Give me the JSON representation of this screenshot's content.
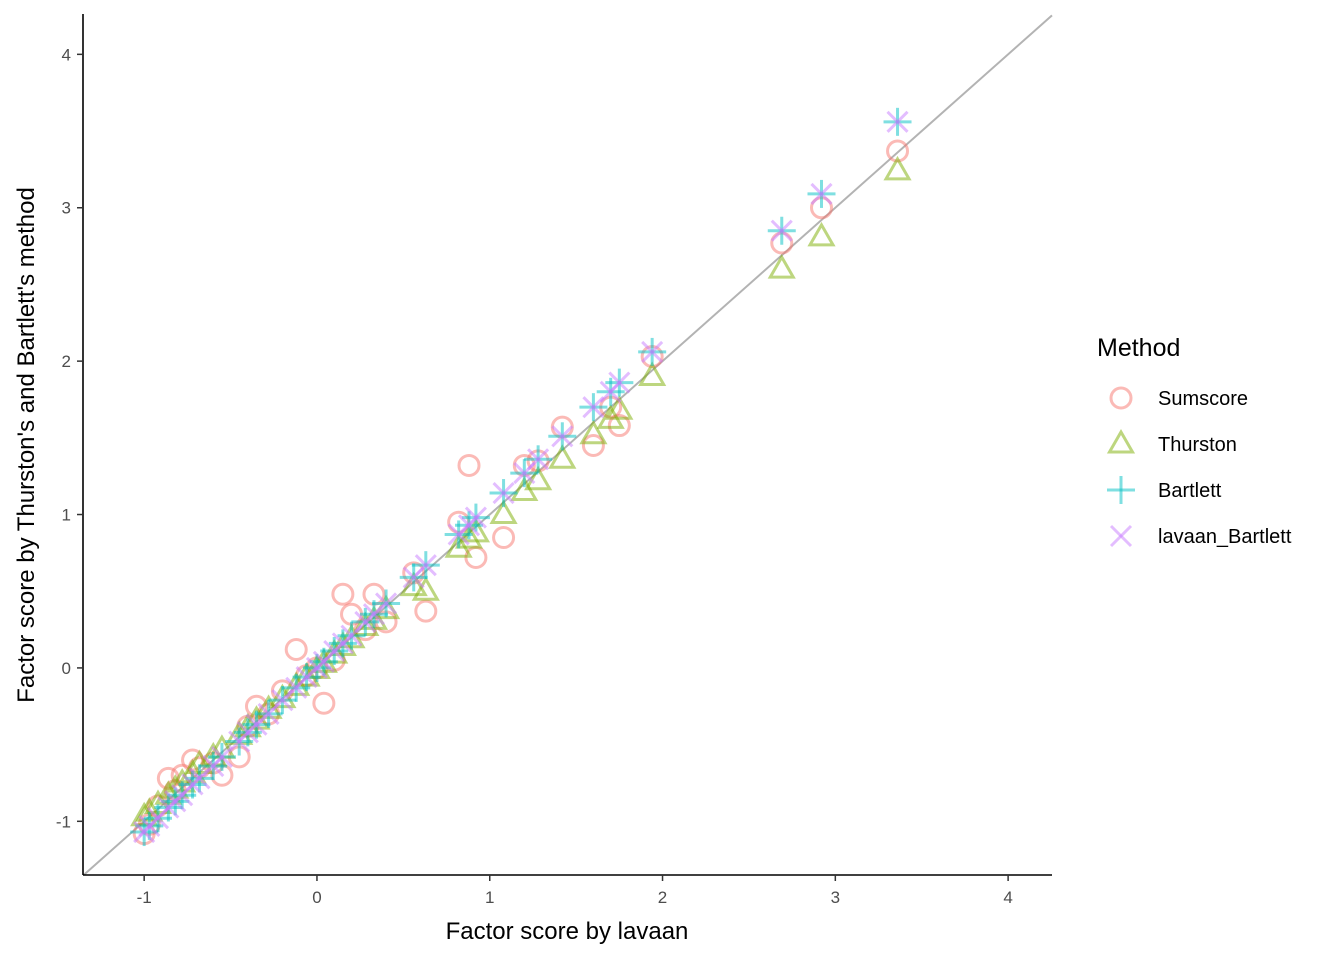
{
  "chart_data": {
    "type": "scatter",
    "title": "",
    "xlabel": "Factor score by lavaan",
    "ylabel": "Factor score by Thurston's and Bartlett's method",
    "xlim": [
      -1.354,
      4.254
    ],
    "ylim": [
      -1.35,
      4.263
    ],
    "xticks": [
      -1,
      0,
      1,
      2,
      3,
      4
    ],
    "yticks": [
      -1,
      0,
      1,
      2,
      3,
      4
    ],
    "grid": false,
    "reference_line": {
      "type": "identity",
      "color": "#b3b3b3"
    },
    "legend": {
      "title": "Method",
      "placement": "right"
    },
    "x": [
      -1.0,
      -0.97,
      -0.92,
      -0.86,
      -0.82,
      -0.78,
      -0.72,
      -0.68,
      -0.6,
      -0.55,
      -0.45,
      -0.4,
      -0.35,
      -0.28,
      -0.2,
      -0.12,
      -0.06,
      0.0,
      0.04,
      0.1,
      0.15,
      0.2,
      0.28,
      0.33,
      0.4,
      0.56,
      0.63,
      0.82,
      0.88,
      0.92,
      1.08,
      1.2,
      1.28,
      1.42,
      1.6,
      1.7,
      1.75,
      1.94,
      2.69,
      2.92,
      3.36
    ],
    "series": [
      {
        "name": "Sumscore",
        "marker": "circle",
        "color": "#F8766D",
        "values": [
          -1.08,
          -1.02,
          -0.9,
          -0.72,
          -0.8,
          -0.7,
          -0.6,
          -0.65,
          -0.62,
          -0.7,
          -0.58,
          -0.38,
          -0.25,
          -0.3,
          -0.15,
          0.12,
          -0.05,
          0.0,
          -0.23,
          0.05,
          0.48,
          0.35,
          0.25,
          0.48,
          0.3,
          0.62,
          0.37,
          0.95,
          1.32,
          0.72,
          0.85,
          1.32,
          1.35,
          1.57,
          1.45,
          1.7,
          1.58,
          2.03,
          2.77,
          3.0,
          3.37
        ]
      },
      {
        "name": "Thurston",
        "marker": "triangle",
        "color": "#7CAE00",
        "values": [
          -0.97,
          -0.94,
          -0.89,
          -0.83,
          -0.79,
          -0.75,
          -0.69,
          -0.63,
          -0.58,
          -0.53,
          -0.44,
          -0.39,
          -0.34,
          -0.27,
          -0.2,
          -0.12,
          -0.06,
          -0.01,
          0.03,
          0.09,
          0.14,
          0.19,
          0.27,
          0.31,
          0.38,
          0.53,
          0.5,
          0.78,
          0.84,
          0.88,
          1.0,
          1.15,
          1.22,
          1.36,
          1.52,
          1.62,
          1.68,
          1.9,
          2.6,
          2.81,
          3.24
        ]
      },
      {
        "name": "Bartlett",
        "marker": "plus",
        "color": "#00BFC4",
        "values": [
          -1.07,
          -1.03,
          -0.98,
          -0.91,
          -0.87,
          -0.83,
          -0.76,
          -0.72,
          -0.64,
          -0.58,
          -0.48,
          -0.42,
          -0.37,
          -0.3,
          -0.21,
          -0.13,
          -0.06,
          0.0,
          0.04,
          0.11,
          0.16,
          0.21,
          0.3,
          0.35,
          0.42,
          0.59,
          0.67,
          0.87,
          0.93,
          0.98,
          1.14,
          1.27,
          1.36,
          1.51,
          1.7,
          1.8,
          1.86,
          2.06,
          2.85,
          3.09,
          3.56
        ]
      },
      {
        "name": "lavaan_Bartlett",
        "marker": "cross",
        "color": "#C77CFF",
        "values": [
          -1.07,
          -1.03,
          -0.98,
          -0.91,
          -0.87,
          -0.83,
          -0.76,
          -0.72,
          -0.64,
          -0.58,
          -0.48,
          -0.42,
          -0.37,
          -0.3,
          -0.21,
          -0.13,
          -0.06,
          0.0,
          0.04,
          0.11,
          0.16,
          0.21,
          0.3,
          0.35,
          0.42,
          0.59,
          0.67,
          0.87,
          0.93,
          0.98,
          1.14,
          1.27,
          1.36,
          1.51,
          1.7,
          1.8,
          1.86,
          2.06,
          2.85,
          3.09,
          3.56
        ]
      }
    ]
  }
}
